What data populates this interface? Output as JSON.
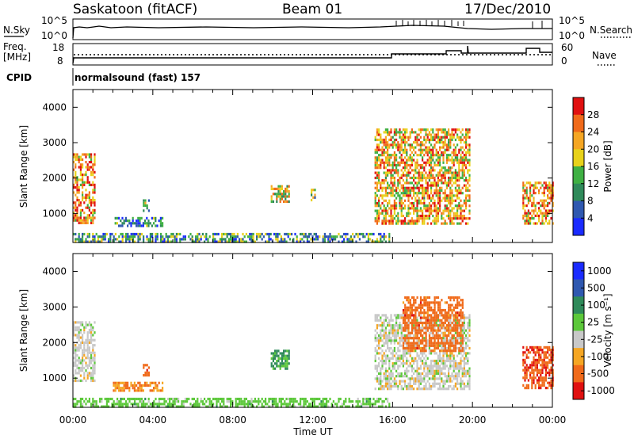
{
  "header": {
    "station": "Saskatoon (fitACF)",
    "beam": "Beam 01",
    "date": "17/Dec/2010"
  },
  "panels": {
    "nsky": {
      "left_label": "N.Sky",
      "right_label": "N.Search",
      "left_ticks": [
        "10^5",
        "10^0"
      ],
      "right_ticks": [
        "10^5",
        "10^0"
      ]
    },
    "freq": {
      "left_label_1": "Freq.",
      "left_label_2": "[MHz]",
      "right_label": "Nave",
      "left_ticks": [
        "18",
        "8"
      ],
      "right_ticks": [
        "60",
        "0"
      ]
    },
    "cpid": {
      "label": "CPID",
      "program": "normalsound (fast) 157"
    }
  },
  "axes": {
    "ylabel": "Slant Range [km]",
    "xlabel": "Time UT",
    "yticks": [
      "1000",
      "2000",
      "3000",
      "4000"
    ],
    "xticks": [
      "00:00",
      "04:00",
      "08:00",
      "12:00",
      "16:00",
      "20:00",
      "00:00"
    ]
  },
  "colorbars": {
    "power": {
      "label": "Power [dB]",
      "ticks": [
        "4",
        "8",
        "12",
        "16",
        "20",
        "24",
        "28"
      ],
      "colors": [
        "#1a2bff",
        "#2f58b0",
        "#2f8a5a",
        "#3fb043",
        "#e8d21a",
        "#f5a623",
        "#f06a1a",
        "#e01010"
      ]
    },
    "velocity": {
      "label": "Velocity [m s⁻¹]",
      "ticks": [
        "1000",
        "500",
        "100",
        "25",
        "-25",
        "-100",
        "-500",
        "-1000"
      ],
      "colors": [
        "#1a2bff",
        "#2f58b0",
        "#2f8a5a",
        "#5cc83a",
        "#c8c8c8",
        "#f5a623",
        "#f06a1a",
        "#e01010"
      ]
    }
  },
  "chart_data": [
    {
      "type": "heatmap",
      "name": "Power",
      "x_range": [
        "00:00",
        "24:00"
      ],
      "ylim": [
        180,
        4500
      ],
      "colorbar_range": [
        0,
        30
      ],
      "regions": [
        {
          "t_start": 0.0,
          "t_end": 1.1,
          "r_start": 700,
          "r_end": 2700,
          "level": 22
        },
        {
          "t_start": 0.0,
          "t_end": 15.8,
          "r_start": 200,
          "r_end": 450,
          "level": 10
        },
        {
          "t_start": 2.0,
          "t_end": 4.5,
          "r_start": 650,
          "r_end": 900,
          "level": 7
        },
        {
          "t_start": 3.5,
          "t_end": 3.8,
          "r_start": 1100,
          "r_end": 1400,
          "level": 14
        },
        {
          "t_start": 9.9,
          "t_end": 10.8,
          "r_start": 1300,
          "r_end": 1800,
          "level": 18
        },
        {
          "t_start": 11.9,
          "t_end": 12.1,
          "r_start": 1400,
          "r_end": 1700,
          "level": 14
        },
        {
          "t_start": 15.1,
          "t_end": 19.9,
          "r_start": 700,
          "r_end": 3400,
          "level": 20
        },
        {
          "t_start": 22.5,
          "t_end": 24.0,
          "r_start": 750,
          "r_end": 1900,
          "level": 22
        }
      ]
    },
    {
      "type": "heatmap",
      "name": "Velocity",
      "x_range": [
        "00:00",
        "24:00"
      ],
      "ylim": [
        180,
        4500
      ],
      "colorbar_range": [
        -1000,
        1000
      ],
      "regions": [
        {
          "t_start": 0.0,
          "t_end": 1.1,
          "r_start": 900,
          "r_end": 2600,
          "level": 0
        },
        {
          "t_start": 0.0,
          "t_end": 15.8,
          "r_start": 200,
          "r_end": 450,
          "level": 60
        },
        {
          "t_start": 2.0,
          "t_end": 4.5,
          "r_start": 650,
          "r_end": 900,
          "level": -100
        },
        {
          "t_start": 3.5,
          "t_end": 3.8,
          "r_start": 1100,
          "r_end": 1400,
          "level": -300
        },
        {
          "t_start": 9.9,
          "t_end": 10.8,
          "r_start": 1300,
          "r_end": 1800,
          "level": 150
        },
        {
          "t_start": 15.1,
          "t_end": 19.9,
          "r_start": 700,
          "r_end": 2800,
          "level": 0
        },
        {
          "t_start": 16.5,
          "t_end": 19.5,
          "r_start": 1800,
          "r_end": 3300,
          "level": -300
        },
        {
          "t_start": 22.5,
          "t_end": 24.0,
          "r_start": 750,
          "r_end": 1900,
          "level": -400
        }
      ]
    }
  ]
}
